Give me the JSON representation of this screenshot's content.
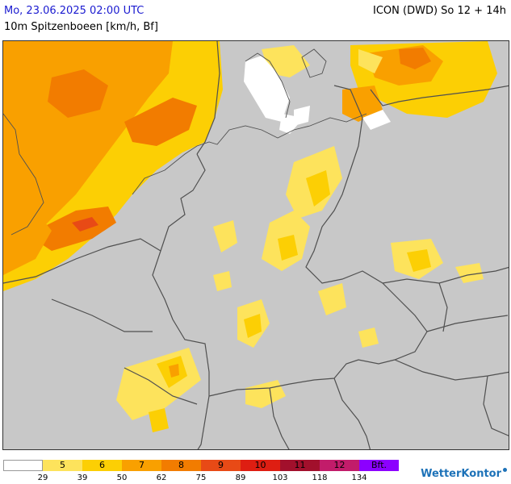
{
  "header": {
    "datetime": "Mo, 23.06.2025 02:00 UTC",
    "model": "ICON (DWD) So 12 + 14h",
    "parameter": "10m Spitzenboeen [km/h, Bf]"
  },
  "legend": {
    "bins": [
      {
        "label": "",
        "color": "#ffffff"
      },
      {
        "label": "5",
        "color": "#fde35c"
      },
      {
        "label": "6",
        "color": "#fccf04"
      },
      {
        "label": "7",
        "color": "#f9a000"
      },
      {
        "label": "8",
        "color": "#f27c00"
      },
      {
        "label": "9",
        "color": "#e84a16"
      },
      {
        "label": "10",
        "color": "#de1e12"
      },
      {
        "label": "11",
        "color": "#a2102c"
      },
      {
        "label": "12",
        "color": "#c21c6a"
      },
      {
        "label": "Bft.",
        "color": "#8c00ff"
      }
    ],
    "thresholds": [
      "29",
      "39",
      "50",
      "62",
      "75",
      "89",
      "103",
      "118",
      "134"
    ]
  },
  "brand": {
    "name": "WetterKontor"
  },
  "colors": {
    "land": "#c8c8c8",
    "border": "#505050",
    "calm": "#ffffff"
  }
}
